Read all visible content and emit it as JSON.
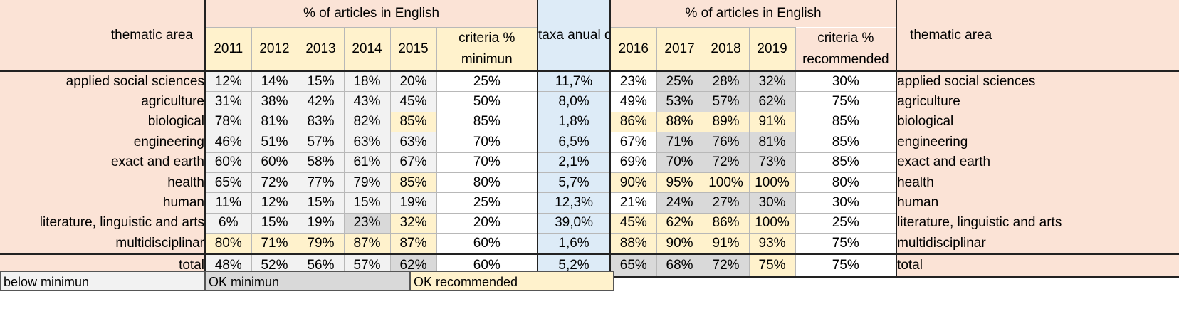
{
  "header": {
    "thematic_area": "thematic area",
    "pct_english": "% of articles in English",
    "growth": "taxa anual de cresci-mento",
    "criteria_min": "criteria % minimun",
    "criteria_rec": "criteria % recommended",
    "years_a": [
      "2011",
      "2012",
      "2013",
      "2014",
      "2015"
    ],
    "years_b": [
      "2016",
      "2017",
      "2018",
      "2019"
    ]
  },
  "rows": [
    {
      "area": "applied social sciences",
      "a": [
        "12%",
        "14%",
        "15%",
        "18%",
        "20%"
      ],
      "min": "25%",
      "growth": "11,7%",
      "b": [
        "23%",
        "25%",
        "28%",
        "32%"
      ],
      "rec": "30%"
    },
    {
      "area": "agriculture",
      "a": [
        "31%",
        "38%",
        "42%",
        "43%",
        "45%"
      ],
      "min": "50%",
      "growth": "8,0%",
      "b": [
        "49%",
        "53%",
        "57%",
        "62%"
      ],
      "rec": "75%"
    },
    {
      "area": "biological",
      "a": [
        "78%",
        "81%",
        "83%",
        "82%",
        "85%"
      ],
      "min": "85%",
      "growth": "1,8%",
      "b": [
        "86%",
        "88%",
        "89%",
        "91%"
      ],
      "rec": "85%"
    },
    {
      "area": "engineering",
      "a": [
        "46%",
        "51%",
        "57%",
        "63%",
        "63%"
      ],
      "min": "70%",
      "growth": "6,5%",
      "b": [
        "67%",
        "71%",
        "76%",
        "81%"
      ],
      "rec": "85%"
    },
    {
      "area": "exact and earth",
      "a": [
        "60%",
        "60%",
        "58%",
        "61%",
        "67%"
      ],
      "min": "70%",
      "growth": "2,1%",
      "b": [
        "69%",
        "70%",
        "72%",
        "73%"
      ],
      "rec": "85%"
    },
    {
      "area": "health",
      "a": [
        "65%",
        "72%",
        "77%",
        "79%",
        "85%"
      ],
      "min": "80%",
      "growth": "5,7%",
      "b": [
        "90%",
        "95%",
        "100%",
        "100%"
      ],
      "rec": "80%"
    },
    {
      "area": "human",
      "a": [
        "11%",
        "12%",
        "15%",
        "15%",
        "19%"
      ],
      "min": "25%",
      "growth": "12,3%",
      "b": [
        "21%",
        "24%",
        "27%",
        "30%"
      ],
      "rec": "30%"
    },
    {
      "area": "literature, linguistic and arts",
      "a": [
        "6%",
        "15%",
        "19%",
        "23%",
        "32%"
      ],
      "min": "20%",
      "growth": "39,0%",
      "b": [
        "45%",
        "62%",
        "86%",
        "100%"
      ],
      "rec": "25%"
    },
    {
      "area": "multidisciplinar",
      "a": [
        "80%",
        "71%",
        "79%",
        "87%",
        "87%"
      ],
      "min": "60%",
      "growth": "1,6%",
      "b": [
        "88%",
        "90%",
        "91%",
        "93%"
      ],
      "rec": "75%"
    }
  ],
  "total": {
    "area": "total",
    "a": [
      "48%",
      "52%",
      "56%",
      "57%",
      "62%"
    ],
    "min": "60%",
    "growth": "5,2%",
    "b": [
      "65%",
      "68%",
      "72%",
      "75%"
    ],
    "rec": "75%"
  },
  "legend": {
    "below": "below minimun",
    "ok_min": "OK minimun",
    "ok_rec": "OK recommended"
  },
  "status_colors": {
    "below": "#f2f2f2",
    "ok_min": "#d9d9d9",
    "ok_rec": "#fff2cc",
    "header": "#fbe3d6",
    "growth": "#ddebf7"
  }
}
